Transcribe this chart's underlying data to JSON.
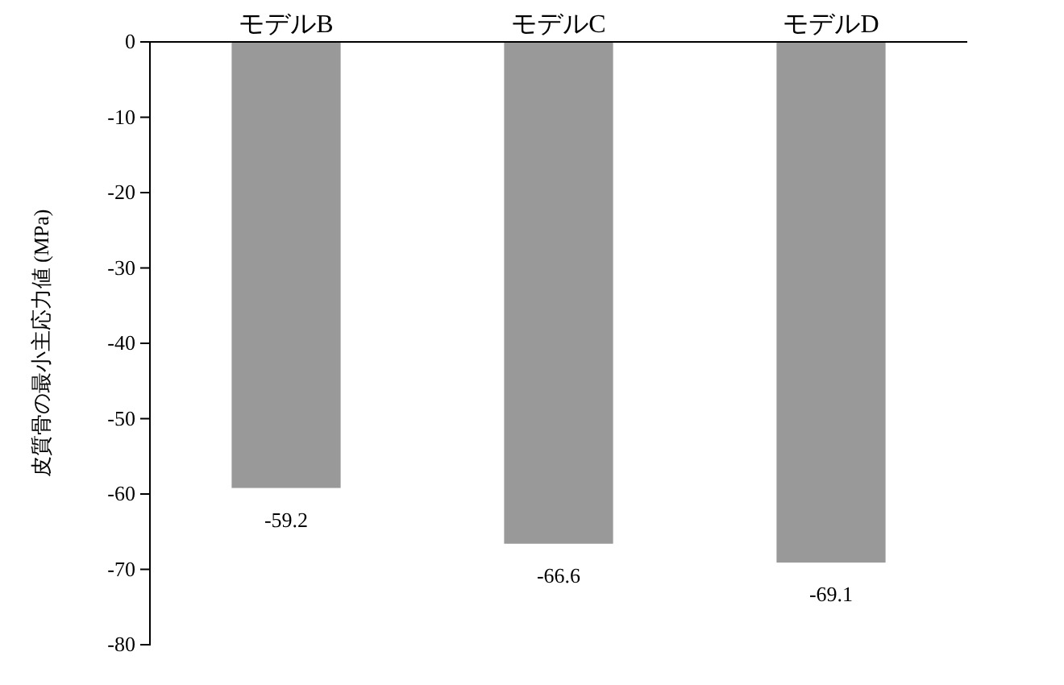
{
  "chart_data": {
    "type": "bar",
    "ylabel": "皮質骨の最小主応力値 (MPa)",
    "categories": [
      "モデルB",
      "モデルC",
      "モデルD"
    ],
    "values": [
      -59.2,
      -66.6,
      -69.1
    ],
    "color": "#999999",
    "ylim": [
      -80,
      0
    ],
    "yticks": [
      -80,
      -70,
      -60,
      -50,
      -40,
      -30,
      -20,
      -10,
      0
    ],
    "data_labels": true
  }
}
